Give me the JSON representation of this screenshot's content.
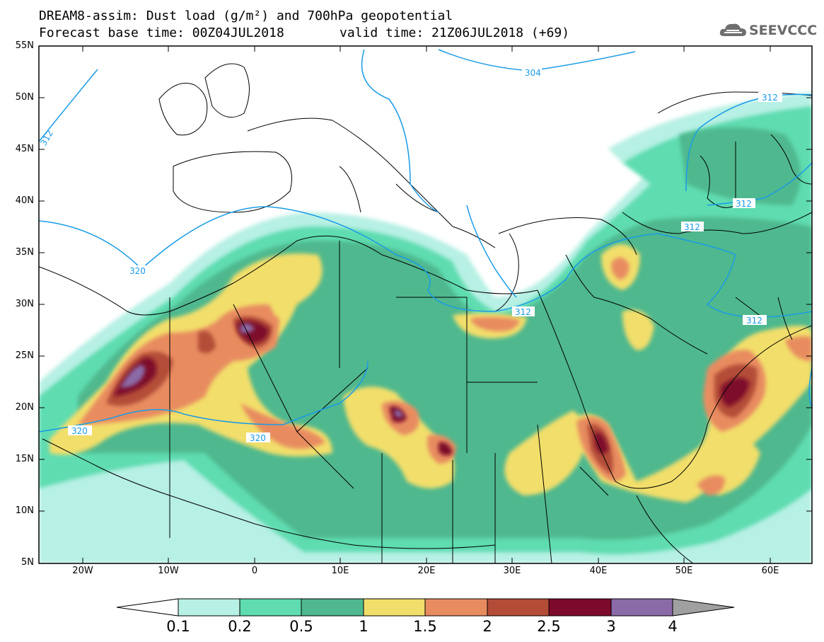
{
  "header": {
    "line1": "DREAM8-assim: Dust load (g/m²) and 700hPa geopotential",
    "line2_left": "Forecast base time: 00Z04JUL2018",
    "line2_right": "valid time: 21Z06JUL2018 (+69)",
    "logo_text": "SEEVCCC"
  },
  "axes": {
    "lat_labels": [
      "55N",
      "50N",
      "45N",
      "40N",
      "35N",
      "30N",
      "25N",
      "20N",
      "15N",
      "10N",
      "5N"
    ],
    "lon_labels": [
      "20W",
      "10W",
      "0",
      "10E",
      "20E",
      "30E",
      "40E",
      "50E",
      "60E"
    ]
  },
  "contours": {
    "labels": [
      "304",
      "312",
      "312",
      "312",
      "312",
      "312",
      "320",
      "320",
      "320",
      "312"
    ]
  },
  "colorbar": {
    "labels": [
      "0.1",
      "0.2",
      "0.5",
      "1",
      "1.5",
      "2",
      "2.5",
      "3",
      "4"
    ],
    "colors": [
      "#ffffff",
      "#b7f0e4",
      "#5fdcb0",
      "#4fb88e",
      "#f2de6a",
      "#e88c60",
      "#b34d37",
      "#7d0a2b",
      "#8b6aa8",
      "#a0a0a0"
    ]
  },
  "colors": {
    "coastline": "#000000",
    "geopotential": "#1a9be6",
    "frame": "#000000"
  }
}
